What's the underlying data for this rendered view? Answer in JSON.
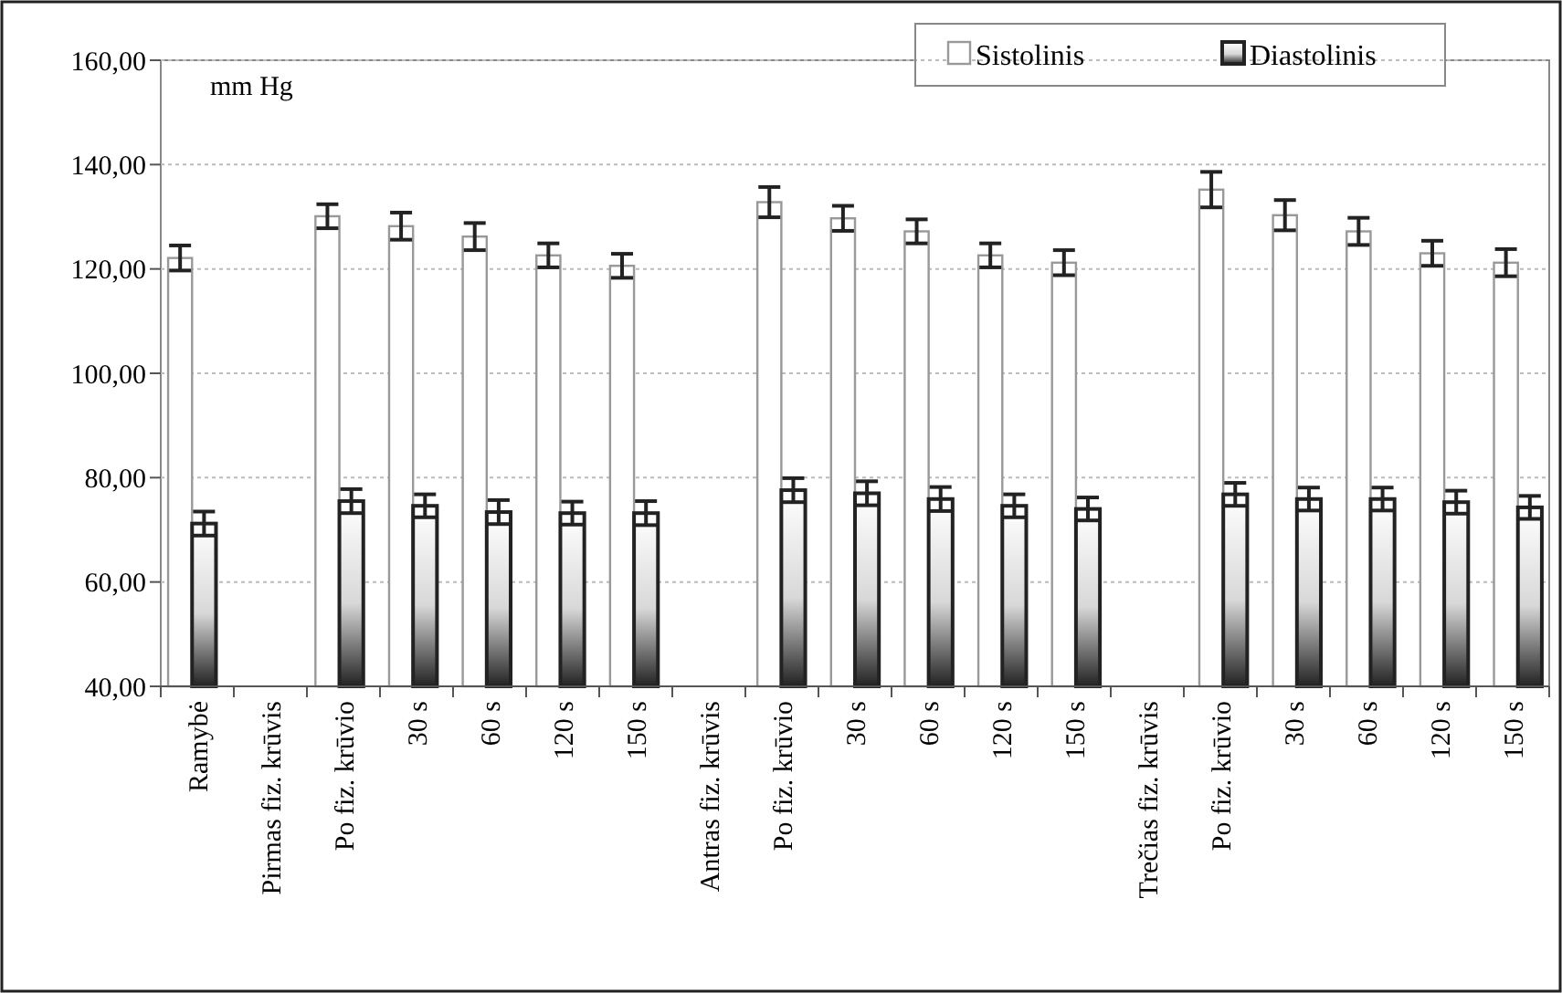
{
  "chart_data": {
    "type": "bar",
    "categories": [
      "Ramybė",
      "Pirmas fiz. krūvis",
      "Po fiz. krūvio",
      "30 s",
      "60 s",
      "120 s",
      "150 s",
      "Antras fiz. krūvis",
      "Po fiz. krūvio",
      "30 s",
      "60 s",
      "120 s",
      "150 s",
      "Trečias fiz. krūvis",
      "Po fiz. krūvio",
      "30 s",
      "60 s",
      "120 s",
      "150 s"
    ],
    "series": [
      {
        "name": "Sistolinis",
        "color": "#ffffff",
        "values": [
          122.1,
          null,
          130.1,
          128.2,
          126.2,
          122.6,
          120.6,
          null,
          132.8,
          129.7,
          127.2,
          122.6,
          121.2,
          null,
          135.2,
          130.3,
          127.2,
          123.0,
          121.2
        ],
        "errors": [
          2.4,
          null,
          2.3,
          2.6,
          2.6,
          2.3,
          2.3,
          null,
          2.9,
          2.4,
          2.3,
          2.3,
          2.4,
          null,
          3.4,
          2.9,
          2.6,
          2.4,
          2.6
        ]
      },
      {
        "name": "Diastolinis",
        "color": "#222222",
        "values": [
          71.2,
          null,
          75.5,
          74.6,
          73.4,
          73.2,
          73.2,
          null,
          77.6,
          77.0,
          75.9,
          74.6,
          74.0,
          null,
          76.8,
          75.9,
          75.9,
          75.3,
          74.3
        ],
        "errors": [
          2.3,
          null,
          2.3,
          2.2,
          2.3,
          2.2,
          2.3,
          null,
          2.3,
          2.3,
          2.3,
          2.2,
          2.2,
          null,
          2.2,
          2.2,
          2.2,
          2.2,
          2.2
        ]
      }
    ],
    "ylim": [
      40,
      160
    ],
    "yticks": [
      {
        "value": 40,
        "label": "40,00"
      },
      {
        "value": 60,
        "label": "60,00"
      },
      {
        "value": 80,
        "label": "80,00"
      },
      {
        "value": 100,
        "label": "100,00"
      },
      {
        "value": 120,
        "label": "120,00"
      },
      {
        "value": 140,
        "label": "140,00"
      },
      {
        "value": 160,
        "label": "160,00"
      }
    ],
    "grid": "y",
    "legend": "top right",
    "annotations": [
      "mm Hg"
    ]
  }
}
